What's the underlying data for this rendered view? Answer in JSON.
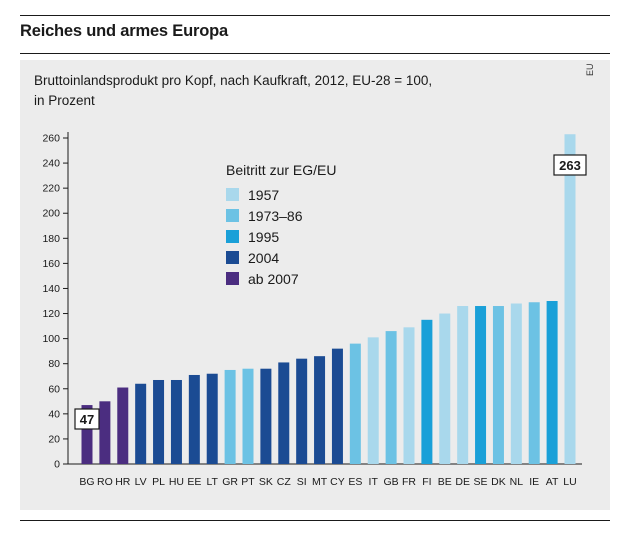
{
  "header": {
    "title": "Reiches und armes Europa"
  },
  "source_tag": "EU",
  "chart_data": {
    "type": "bar",
    "title": "Bruttoinlandsprodukt pro Kopf, nach Kaufkraft, 2012, EU-28 = 100,",
    "subtitle": "in Prozent",
    "xlabel": "",
    "ylabel": "",
    "ylim": [
      0,
      260
    ],
    "yticks": [
      0,
      20,
      40,
      60,
      80,
      100,
      120,
      140,
      160,
      180,
      200,
      220,
      240,
      260
    ],
    "grid": false,
    "legend_title": "Beitritt zur EG/EU",
    "legend": [
      {
        "label": "1957",
        "color": "#a9d8ec"
      },
      {
        "label": "1973–86",
        "color": "#6cc2e4"
      },
      {
        "label": "1995",
        "color": "#1aa0d8"
      },
      {
        "label": "2004",
        "color": "#1b4b93"
      },
      {
        "label": "ab 2007",
        "color": "#4b2d80"
      }
    ],
    "categories": [
      "BG",
      "RO",
      "HR",
      "LV",
      "PL",
      "HU",
      "EE",
      "LT",
      "GR",
      "PT",
      "SK",
      "CZ",
      "SI",
      "MT",
      "CY",
      "ES",
      "IT",
      "GB",
      "FR",
      "FI",
      "BE",
      "DE",
      "SE",
      "DK",
      "NL",
      "IE",
      "AT",
      "LU"
    ],
    "values": [
      47,
      50,
      61,
      64,
      67,
      67,
      71,
      72,
      75,
      76,
      76,
      81,
      84,
      86,
      92,
      96,
      101,
      106,
      109,
      115,
      120,
      126,
      126,
      126,
      128,
      129,
      130,
      263
    ],
    "groups": [
      "ab 2007",
      "ab 2007",
      "ab 2007",
      "2004",
      "2004",
      "2004",
      "2004",
      "2004",
      "1973–86",
      "1973–86",
      "2004",
      "2004",
      "2004",
      "2004",
      "2004",
      "1973–86",
      "1957",
      "1973–86",
      "1957",
      "1995",
      "1957",
      "1957",
      "1995",
      "1973–86",
      "1957",
      "1973–86",
      "1995",
      "1957"
    ],
    "annotations": [
      {
        "category": "BG",
        "label": "47"
      },
      {
        "category": "LU",
        "label": "263"
      }
    ]
  }
}
